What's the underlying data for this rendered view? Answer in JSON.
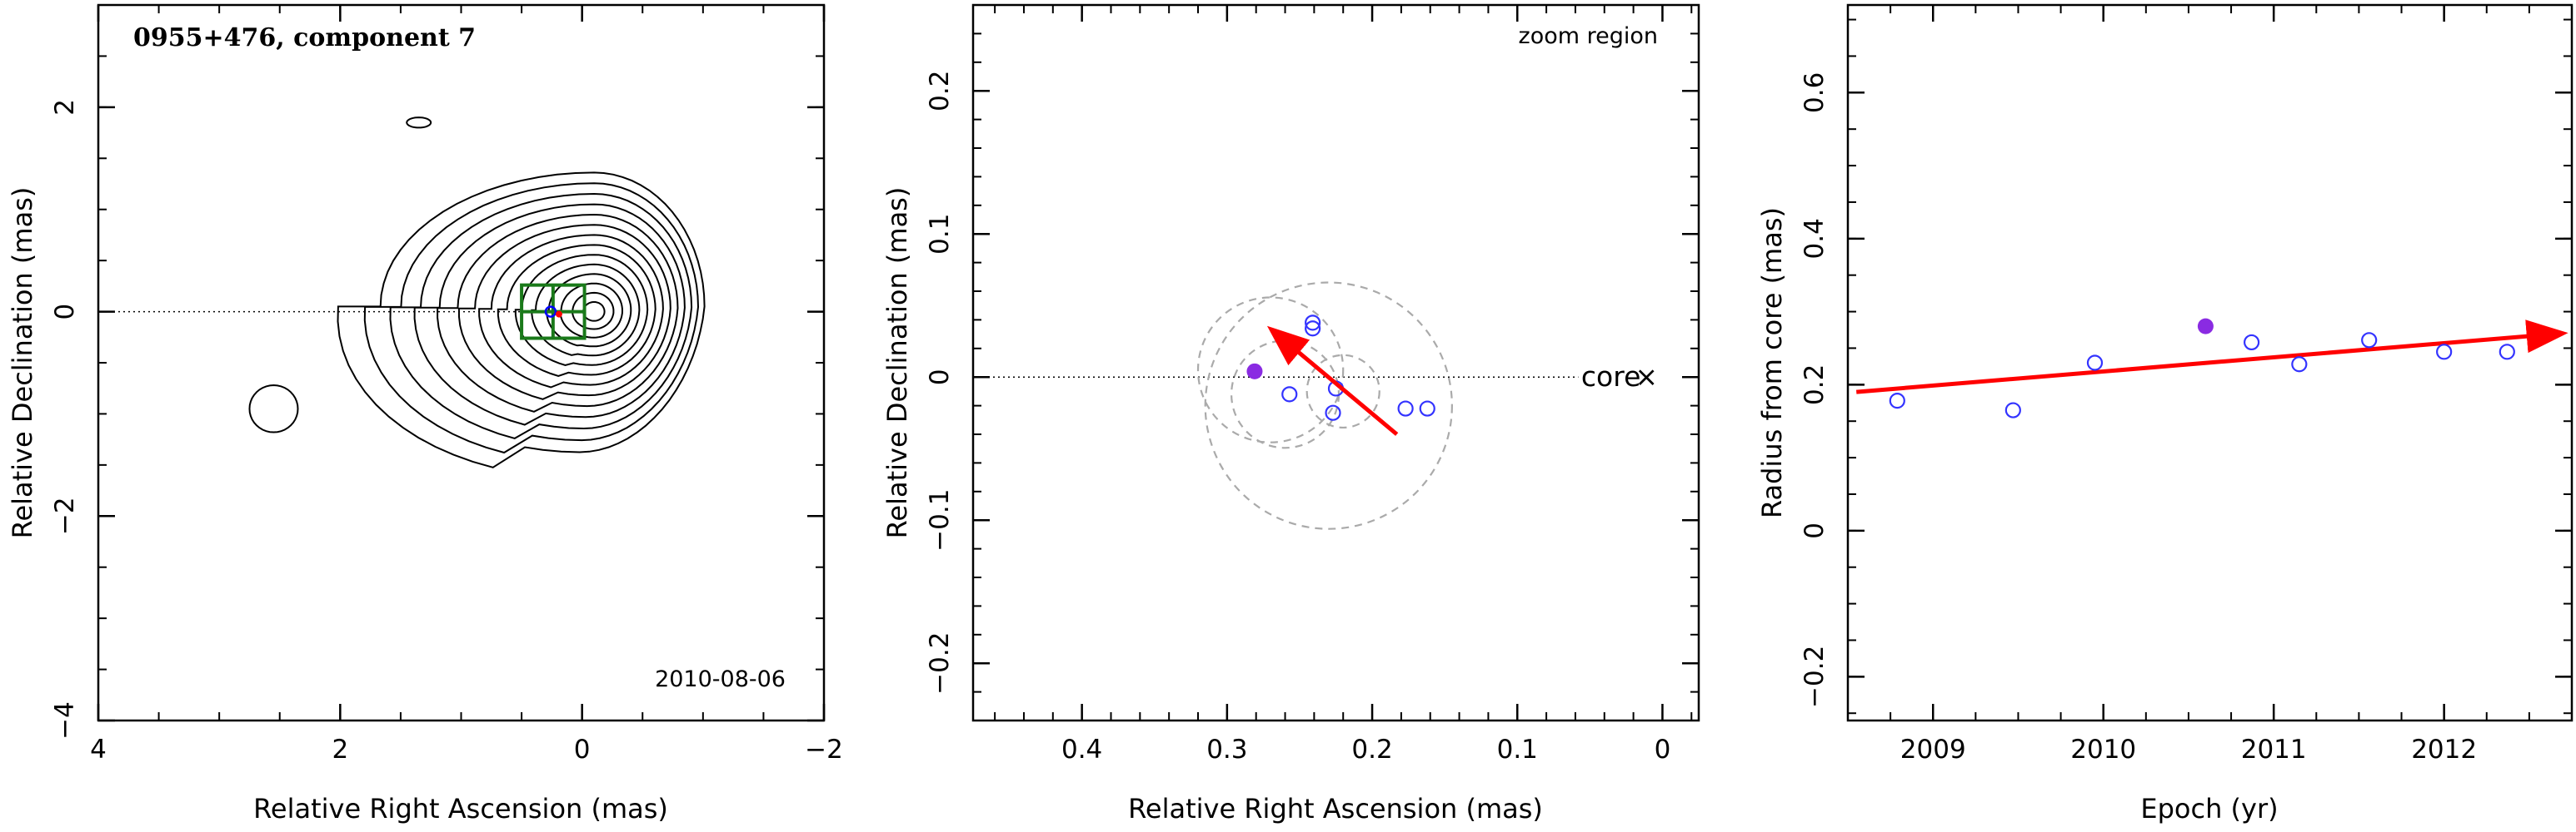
{
  "chart_data": [
    {
      "type": "contour",
      "title": "0955+476, component 7",
      "date": "2010-08-06",
      "xlabel": "Relative Right Ascension (mas)",
      "ylabel": "Relative Declination (mas)",
      "xlim": [
        4,
        -2
      ],
      "ylim": [
        -4,
        3
      ],
      "xticks": [
        4,
        2,
        0,
        -2
      ],
      "yticks": [
        -4,
        -2,
        0,
        2
      ],
      "xtick_labels": [
        "4",
        "2",
        "0",
        "−2"
      ],
      "ytick_labels": [
        "−4",
        "−2",
        "0",
        "2"
      ],
      "contour_peak": [
        -0.1,
        0.0
      ],
      "component_position": [
        0.26,
        0.0
      ],
      "zoom_box": {
        "x": [
          0.5,
          -0.02
        ],
        "y": [
          -0.26,
          0.26
        ]
      },
      "colors": {
        "contours": "#000000",
        "box": "#1a7a1a",
        "markers": "#0000ff",
        "arrow": "#ff0000"
      }
    },
    {
      "type": "scatter",
      "annotation": "zoom region",
      "core_label": "core",
      "xlabel": "Relative Right Ascension (mas)",
      "ylabel": "Relative Declination (mas)",
      "xlim": [
        0.475,
        -0.025
      ],
      "ylim": [
        -0.24,
        0.26
      ],
      "xticks": [
        0.4,
        0.3,
        0.2,
        0.1,
        0
      ],
      "yticks": [
        -0.2,
        -0.1,
        0,
        0.1,
        0.2
      ],
      "xtick_labels": [
        "0.4",
        "0.3",
        "0.2",
        "0.1",
        "0"
      ],
      "ytick_labels": [
        "−0.2",
        "−0.1",
        "0",
        "0.1",
        "0.2"
      ],
      "points": [
        {
          "x": 0.259,
          "y": 0.024
        },
        {
          "x": 0.241,
          "y": 0.038
        },
        {
          "x": 0.241,
          "y": 0.034
        },
        {
          "x": 0.257,
          "y": -0.012
        },
        {
          "x": 0.225,
          "y": -0.008
        },
        {
          "x": 0.227,
          "y": -0.025
        },
        {
          "x": 0.177,
          "y": -0.022
        },
        {
          "x": 0.162,
          "y": -0.022
        }
      ],
      "highlight": {
        "x": 0.281,
        "y": 0.004
      },
      "circles": [
        {
          "x": 0.27,
          "y": 0.005,
          "r": 0.05
        },
        {
          "x": 0.23,
          "y": -0.02,
          "r": 0.085
        },
        {
          "x": 0.26,
          "y": -0.012,
          "r": 0.037
        },
        {
          "x": 0.22,
          "y": -0.01,
          "r": 0.025
        }
      ],
      "arrow": {
        "from": [
          0.183,
          -0.04
        ],
        "to": [
          0.268,
          0.032
        ]
      },
      "colors": {
        "points": "#3333ff",
        "highlight": "#8a2be2",
        "circles": "#aaaaaa",
        "arrow": "#ff0000"
      }
    },
    {
      "type": "scatter",
      "xlabel": "Epoch (yr)",
      "ylabel": "Radius from core (mas)",
      "xlim": [
        2008.5,
        2012.75
      ],
      "ylim": [
        -0.26,
        0.72
      ],
      "xticks": [
        2009,
        2010,
        2011,
        2012
      ],
      "yticks": [
        -0.2,
        0,
        0.2,
        0.4,
        0.6
      ],
      "xtick_labels": [
        "2009",
        "2010",
        "2011",
        "2012"
      ],
      "ytick_labels": [
        "−0.2",
        "0",
        "0.2",
        "0.4",
        "0.6"
      ],
      "points": [
        {
          "x": 2008.79,
          "y": 0.178
        },
        {
          "x": 2009.47,
          "y": 0.165
        },
        {
          "x": 2009.95,
          "y": 0.23
        },
        {
          "x": 2010.87,
          "y": 0.258
        },
        {
          "x": 2011.15,
          "y": 0.228
        },
        {
          "x": 2011.56,
          "y": 0.261
        },
        {
          "x": 2012.0,
          "y": 0.245
        },
        {
          "x": 2012.37,
          "y": 0.245
        }
      ],
      "highlight": {
        "x": 2010.6,
        "y": 0.28
      },
      "fit_arrow": {
        "from": [
          2008.55,
          0.19
        ],
        "to": [
          2012.68,
          0.27
        ]
      },
      "colors": {
        "points": "#3333ff",
        "highlight": "#8a2be2",
        "arrow": "#ff0000"
      }
    }
  ]
}
